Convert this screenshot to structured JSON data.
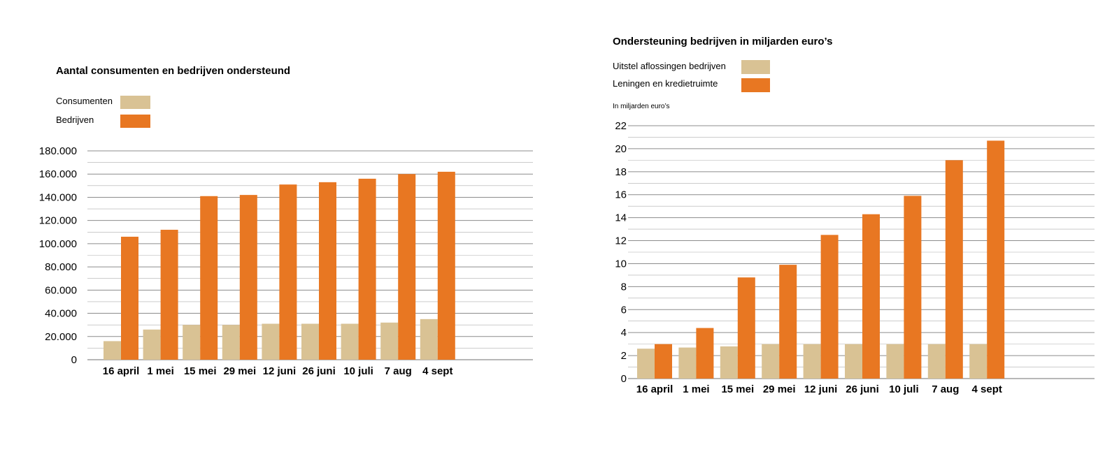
{
  "colors": {
    "series_a": "#d9c294",
    "series_b": "#e87722",
    "grid": "#8c8c8c",
    "axis": "#8c8c8c"
  },
  "chart_data": [
    {
      "type": "bar",
      "title": "Aantal consumenten en bedrijven ondersteund",
      "unit_label": "",
      "categories": [
        "16 april",
        "1 mei",
        "15 mei",
        "29 mei",
        "12 juni",
        "26 juni",
        "10 juli",
        "7 aug",
        "4 sept"
      ],
      "series": [
        {
          "name": "Consumenten",
          "values": [
            16000,
            26000,
            30000,
            30000,
            31000,
            31000,
            31000,
            32000,
            35000
          ]
        },
        {
          "name": "Bedrijven",
          "values": [
            106000,
            112000,
            141000,
            142000,
            151000,
            153000,
            156000,
            160000,
            162000
          ]
        }
      ],
      "ylim": [
        0,
        180000
      ],
      "yticks": [
        0,
        20000,
        40000,
        60000,
        80000,
        100000,
        120000,
        140000,
        160000,
        180000
      ],
      "ytick_labels": [
        "0",
        "20.000",
        "40.000",
        "60.000",
        "80.000",
        "100.000",
        "120.000",
        "140.000",
        "160.000",
        "180.000"
      ],
      "grid": true,
      "legend_position": "top-left"
    },
    {
      "type": "bar",
      "title": "Ondersteuning bedrijven in miljarden euro’s",
      "unit_label": "In miljarden euro’s",
      "categories": [
        "16 april",
        "1 mei",
        "15 mei",
        "29 mei",
        "12 juni",
        "26 juni",
        "10 juli",
        "7 aug",
        "4 sept"
      ],
      "series": [
        {
          "name": "Uitstel aflossingen bedrijven",
          "values": [
            2.6,
            2.7,
            2.8,
            3.0,
            3.0,
            3.0,
            3.0,
            3.0,
            3.0
          ]
        },
        {
          "name": "Leningen en kredietruimte",
          "values": [
            3.0,
            4.4,
            8.8,
            9.9,
            12.5,
            14.3,
            15.9,
            19.0,
            20.7
          ]
        }
      ],
      "ylim": [
        0,
        22
      ],
      "yticks": [
        0,
        2,
        4,
        6,
        8,
        10,
        12,
        14,
        16,
        18,
        20,
        22
      ],
      "ytick_labels": [
        "0",
        "2",
        "4",
        "6",
        "8",
        "10",
        "12",
        "14",
        "16",
        "18",
        "20",
        "22"
      ],
      "grid": true,
      "legend_position": "top-left"
    }
  ]
}
